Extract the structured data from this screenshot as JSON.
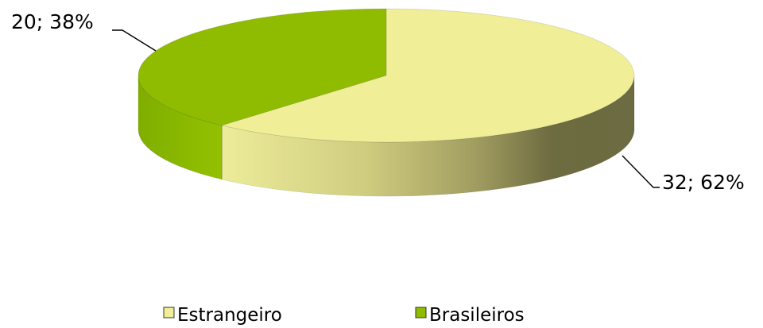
{
  "chart_data": {
    "type": "pie",
    "style": "3d",
    "categories": [
      "Estrangeiro",
      "Brasileiros"
    ],
    "values": [
      32,
      20
    ],
    "percentages": [
      62,
      38
    ],
    "data_labels": [
      "32; 62%",
      "20; 38%"
    ],
    "colors": [
      "#f0ee96",
      "#8fbc00"
    ],
    "legend": {
      "position": "bottom",
      "items": [
        "Estrangeiro",
        "Brasileiros"
      ]
    }
  }
}
